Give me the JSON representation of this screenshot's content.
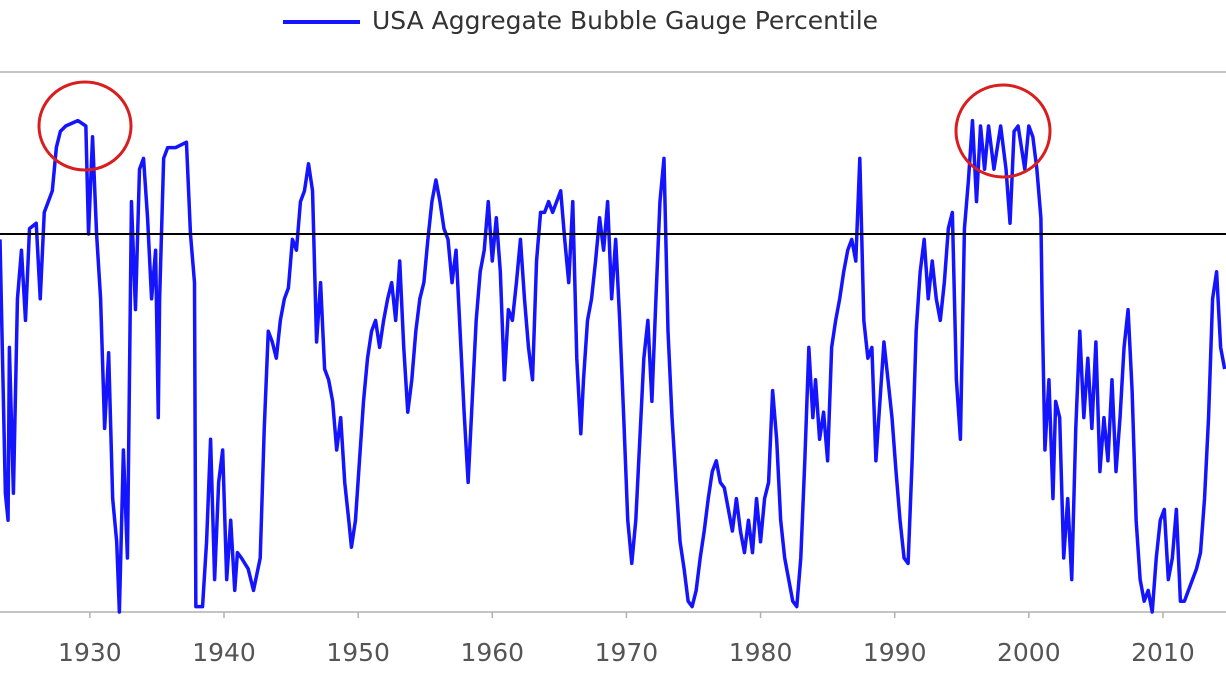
{
  "chart_data": {
    "type": "line",
    "series": [
      {
        "name": "USA Aggregate Bubble Gauge Percentile",
        "color": "#1414ff"
      }
    ],
    "xlim": [
      1923.3,
      2014.7
    ],
    "ylim": [
      0,
      100
    ],
    "xticks": [
      1930,
      1940,
      1950,
      1960,
      1970,
      1980,
      1990,
      2000,
      2010
    ],
    "reference_line": {
      "value": 70,
      "color": "#000000"
    },
    "x": [
      1923.3,
      1923.7,
      1923.9,
      1924.0,
      1924.3,
      1924.6,
      1924.9,
      1925.2,
      1925.5,
      1926.0,
      1926.3,
      1926.6,
      1926.9,
      1927.2,
      1927.5,
      1927.8,
      1928.2,
      1929.1,
      1929.7,
      1929.9,
      1930.2,
      1930.5,
      1930.8,
      1931.1,
      1931.4,
      1931.7,
      1932.0,
      1932.2,
      1932.5,
      1932.8,
      1933.1,
      1933.4,
      1933.7,
      1934.0,
      1934.3,
      1934.6,
      1934.9,
      1935.1,
      1935.2,
      1935.5,
      1935.8,
      1936.1,
      1936.4,
      1937.2,
      1937.5,
      1937.8,
      1937.9,
      1938.4,
      1938.7,
      1939.0,
      1939.3,
      1939.6,
      1939.9,
      1940.2,
      1940.5,
      1940.8,
      1941.0,
      1941.3,
      1941.8,
      1942.2,
      1942.7,
      1943.0,
      1943.3,
      1943.6,
      1943.9,
      1944.2,
      1944.5,
      1944.8,
      1945.1,
      1945.4,
      1945.7,
      1946.0,
      1946.3,
      1946.6,
      1946.9,
      1947.2,
      1947.5,
      1947.8,
      1948.1,
      1948.4,
      1948.7,
      1949.0,
      1949.3,
      1949.5,
      1949.8,
      1950.1,
      1950.4,
      1950.7,
      1951.0,
      1951.3,
      1951.6,
      1951.9,
      1952.2,
      1952.5,
      1952.8,
      1953.1,
      1953.4,
      1953.7,
      1954.0,
      1954.3,
      1954.6,
      1954.9,
      1955.2,
      1955.5,
      1955.8,
      1956.1,
      1956.4,
      1956.7,
      1957.0,
      1957.3,
      1957.6,
      1957.9,
      1958.2,
      1958.5,
      1958.8,
      1959.1,
      1959.4,
      1959.7,
      1960.0,
      1960.3,
      1960.6,
      1960.9,
      1961.2,
      1961.5,
      1961.8,
      1962.1,
      1962.4,
      1962.7,
      1963.0,
      1963.3,
      1963.6,
      1963.9,
      1964.2,
      1964.5,
      1964.8,
      1965.1,
      1965.4,
      1965.7,
      1966.0,
      1966.3,
      1966.6,
      1966.8,
      1967.1,
      1967.4,
      1967.7,
      1968.0,
      1968.3,
      1968.6,
      1968.9,
      1969.2,
      1969.5,
      1969.8,
      1970.1,
      1970.4,
      1970.7,
      1971.0,
      1971.3,
      1971.6,
      1971.9,
      1972.2,
      1972.5,
      1972.8,
      1973.1,
      1973.4,
      1973.7,
      1974.0,
      1974.3,
      1974.6,
      1974.9,
      1975.2,
      1975.5,
      1975.8,
      1976.1,
      1976.4,
      1976.7,
      1977.0,
      1977.3,
      1977.6,
      1977.9,
      1978.2,
      1978.5,
      1978.8,
      1979.1,
      1979.4,
      1979.7,
      1980.0,
      1980.3,
      1980.6,
      1980.9,
      1981.2,
      1981.5,
      1981.8,
      1982.1,
      1982.4,
      1982.7,
      1983.0,
      1983.3,
      1983.6,
      1983.9,
      1984.1,
      1984.4,
      1984.7,
      1985.0,
      1985.3,
      1985.6,
      1985.9,
      1986.2,
      1986.5,
      1986.8,
      1987.1,
      1987.4,
      1987.7,
      1988.0,
      1988.3,
      1988.6,
      1988.9,
      1989.2,
      1989.5,
      1989.8,
      1990.1,
      1990.4,
      1990.7,
      1991.0,
      1991.3,
      1991.6,
      1991.9,
      1992.2,
      1992.5,
      1992.8,
      1993.1,
      1993.4,
      1993.7,
      1994.0,
      1994.3,
      1994.6,
      1994.9,
      1995.2,
      1995.5,
      1995.8,
      1996.1,
      1996.4,
      1996.7,
      1997.0,
      1997.4,
      1997.9,
      1998.3,
      1998.6,
      1998.9,
      1999.2,
      1999.7,
      2000.0,
      2000.3,
      2000.6,
      2000.9,
      2001.0,
      2001.2,
      2001.5,
      2001.8,
      2002.0,
      2002.3,
      2002.6,
      2002.9,
      2003.2,
      2003.5,
      2003.8,
      2004.1,
      2004.4,
      2004.7,
      2005.0,
      2005.3,
      2005.6,
      2005.9,
      2006.2,
      2006.5,
      2006.8,
      2007.1,
      2007.4,
      2007.7,
      2008.0,
      2008.3,
      2008.6,
      2008.9,
      2009.2,
      2009.5,
      2009.8,
      2010.1,
      2010.4,
      2010.7,
      2011.0,
      2011.3,
      2011.6,
      2011.9,
      2012.2,
      2012.5,
      2012.8,
      2013.1,
      2013.4,
      2013.7,
      2014.0,
      2014.3,
      2014.6
    ],
    "values": [
      69,
      22,
      17,
      49,
      22,
      58,
      67,
      54,
      71,
      72,
      58,
      74,
      76,
      78,
      86,
      89,
      90,
      91,
      90,
      70,
      88,
      70,
      58,
      34,
      48,
      21,
      13,
      0,
      30,
      10,
      76,
      56,
      82,
      84,
      73,
      58,
      67,
      36,
      58,
      84,
      86,
      86,
      86,
      87,
      70,
      61,
      1,
      1,
      13,
      32,
      6,
      24,
      30,
      6,
      17,
      4,
      11,
      10,
      8,
      4,
      10,
      34,
      52,
      50,
      47,
      54,
      58,
      60,
      69,
      67,
      76,
      78,
      83,
      78,
      50,
      61,
      45,
      43,
      39,
      30,
      36,
      24,
      17,
      12,
      17,
      28,
      39,
      47,
      52,
      54,
      49,
      54,
      58,
      61,
      54,
      65,
      49,
      37,
      43,
      52,
      58,
      61,
      69,
      76,
      80,
      76,
      71,
      69,
      61,
      67,
      52,
      37,
      24,
      39,
      54,
      63,
      67,
      76,
      65,
      73,
      63,
      43,
      56,
      54,
      61,
      69,
      58,
      49,
      43,
      65,
      74,
      74,
      76,
      74,
      76,
      78,
      69,
      61,
      76,
      47,
      33,
      43,
      54,
      58,
      65,
      73,
      67,
      76,
      58,
      69,
      54,
      36,
      17,
      9,
      17,
      32,
      47,
      54,
      39,
      58,
      76,
      84,
      52,
      36,
      24,
      13,
      8,
      2,
      1,
      4,
      10,
      15,
      21,
      26,
      28,
      24,
      23,
      19,
      15,
      21,
      15,
      11,
      17,
      11,
      21,
      13,
      21,
      24,
      41,
      32,
      17,
      10,
      6,
      2,
      1,
      10,
      28,
      49,
      36,
      43,
      32,
      37,
      28,
      49,
      54,
      58,
      63,
      67,
      69,
      65,
      84,
      54,
      47,
      49,
      28,
      39,
      50,
      43,
      36,
      26,
      17,
      10,
      9,
      28,
      52,
      63,
      69,
      58,
      65,
      58,
      54,
      61,
      71,
      74,
      43,
      32,
      71,
      80,
      91,
      76,
      90,
      82,
      90,
      82,
      90,
      82,
      72,
      89,
      90,
      82,
      90,
      88,
      82,
      73,
      56,
      30,
      43,
      21,
      39,
      36,
      10,
      21,
      6,
      34,
      52,
      36,
      47,
      34,
      50,
      26,
      36,
      28,
      43,
      26,
      36,
      49,
      56,
      41,
      17,
      6,
      2,
      4,
      0,
      10,
      17,
      19,
      6,
      10,
      19,
      2,
      2,
      4,
      6,
      8,
      11,
      21,
      36,
      58,
      63,
      49,
      45
    ]
  }
}
